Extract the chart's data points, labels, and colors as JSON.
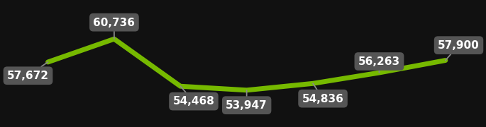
{
  "x_values": [
    0,
    1,
    2,
    3,
    4,
    5,
    6
  ],
  "y_values": [
    57672,
    60736,
    54468,
    53947,
    54836,
    56263,
    57900
  ],
  "labels": [
    "57,672",
    "60,736",
    "54,468",
    "53,947",
    "54,836",
    "56,263",
    "57,900"
  ],
  "line_color": "#76b900",
  "line_width": 5.0,
  "background_color": "#111111",
  "label_bg_color": "#555555",
  "label_text_color": "#ffffff",
  "label_fontsize": 11,
  "ylim_min": 50000,
  "ylim_max": 65000,
  "xlim_min": -0.3,
  "xlim_max": 6.5,
  "label_offsets_x": [
    -0.3,
    0.0,
    0.2,
    0.0,
    0.15,
    0.0,
    0.2
  ],
  "label_offsets_y": [
    -1800,
    2200,
    -2000,
    -2000,
    -2000,
    1500,
    2000
  ],
  "arrow_color": "#888888"
}
